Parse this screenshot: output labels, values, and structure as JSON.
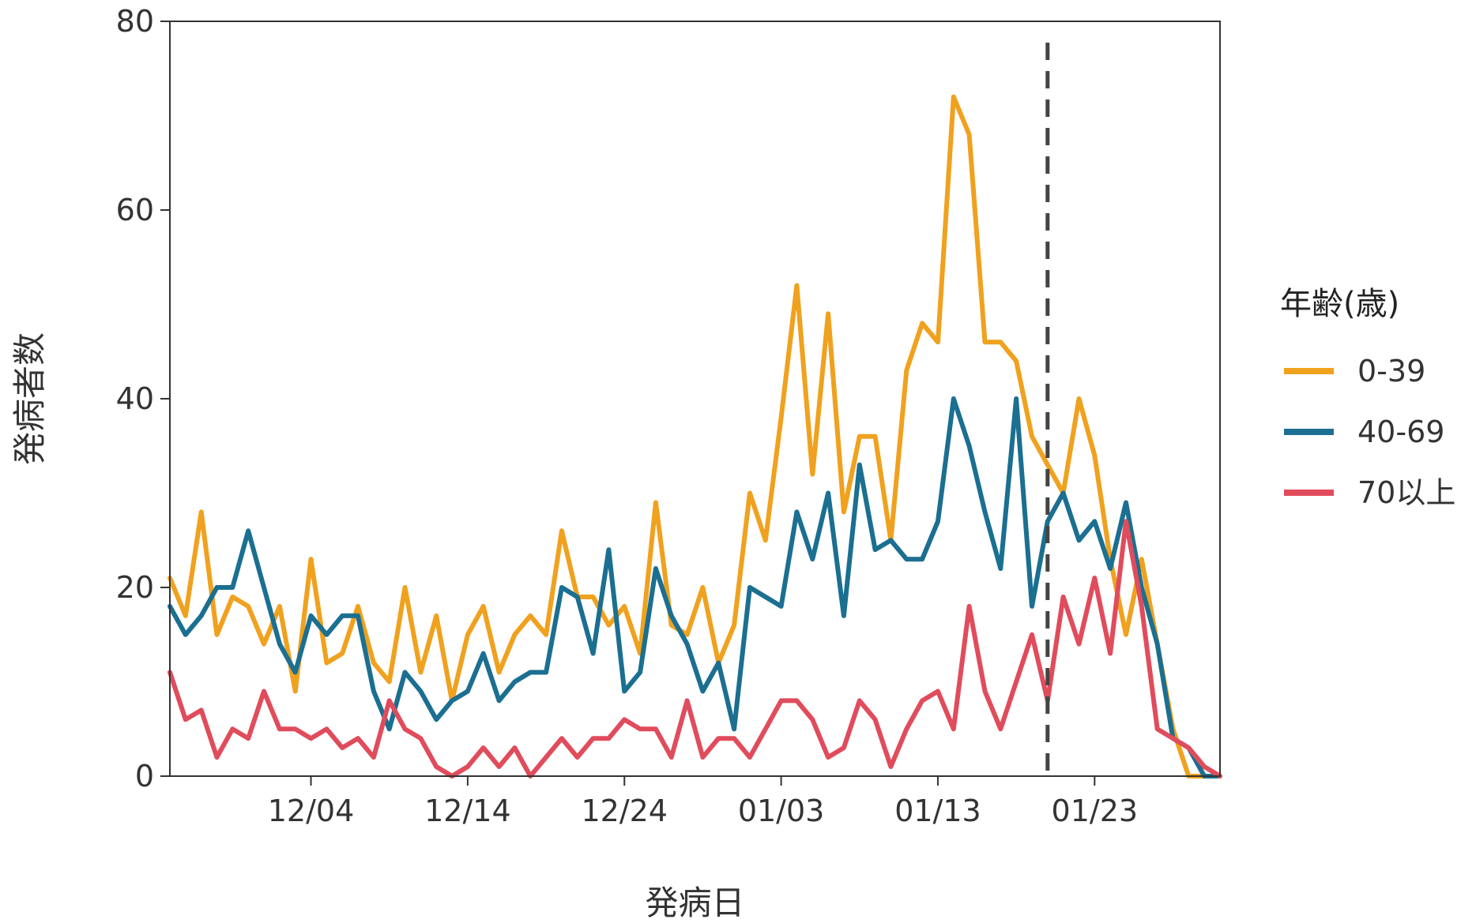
{
  "chart_data": {
    "type": "line",
    "xlabel": "発病日",
    "ylabel": "発病者数",
    "ylim": [
      0,
      80
    ],
    "y_ticks": [
      "0",
      "20",
      "40",
      "60",
      "80"
    ],
    "x_ticks": [
      "12/04",
      "12/14",
      "12/24",
      "01/03",
      "01/13",
      "01/23"
    ],
    "x_start": "11/25",
    "x_end": "01/31",
    "vline_date": "01/20",
    "grid": false,
    "legend": {
      "title": "年齢(歳)",
      "placement": "right"
    },
    "series": [
      {
        "name": "0-39",
        "color": "#F0A11E",
        "values": [
          21,
          17,
          28,
          15,
          19,
          18,
          14,
          18,
          9,
          23,
          12,
          13,
          18,
          12,
          10,
          20,
          11,
          17,
          8,
          15,
          18,
          11,
          15,
          17,
          15,
          26,
          19,
          19,
          16,
          18,
          13,
          29,
          16,
          15,
          20,
          12,
          16,
          30,
          25,
          38,
          52,
          32,
          49,
          28,
          36,
          36,
          25,
          43,
          48,
          46,
          72,
          68,
          46,
          46,
          44,
          36,
          33,
          30,
          40,
          34,
          23,
          15,
          23,
          14,
          5,
          0,
          0,
          0
        ]
      },
      {
        "name": "40-69",
        "color": "#1B6F91",
        "values": [
          18,
          15,
          17,
          20,
          20,
          26,
          20,
          14,
          11,
          17,
          15,
          17,
          17,
          9,
          5,
          11,
          9,
          6,
          8,
          9,
          13,
          8,
          10,
          11,
          11,
          20,
          19,
          13,
          24,
          9,
          11,
          22,
          17,
          14,
          9,
          12,
          5,
          20,
          19,
          18,
          28,
          23,
          30,
          17,
          33,
          24,
          25,
          23,
          23,
          27,
          40,
          35,
          28,
          22,
          40,
          18,
          27,
          30,
          25,
          27,
          22,
          29,
          20,
          14,
          4,
          3,
          0,
          0
        ]
      },
      {
        "name": "70以上",
        "color": "#E04C5C",
        "values": [
          11,
          6,
          7,
          2,
          5,
          4,
          9,
          5,
          5,
          4,
          5,
          3,
          4,
          2,
          8,
          5,
          4,
          1,
          0,
          1,
          3,
          1,
          3,
          0,
          2,
          4,
          2,
          4,
          4,
          6,
          5,
          5,
          2,
          8,
          2,
          4,
          4,
          2,
          5,
          8,
          8,
          6,
          2,
          3,
          8,
          6,
          1,
          5,
          8,
          9,
          5,
          18,
          9,
          5,
          10,
          15,
          8,
          19,
          14,
          21,
          13,
          27,
          18,
          5,
          4,
          3,
          1,
          0
        ]
      }
    ]
  }
}
